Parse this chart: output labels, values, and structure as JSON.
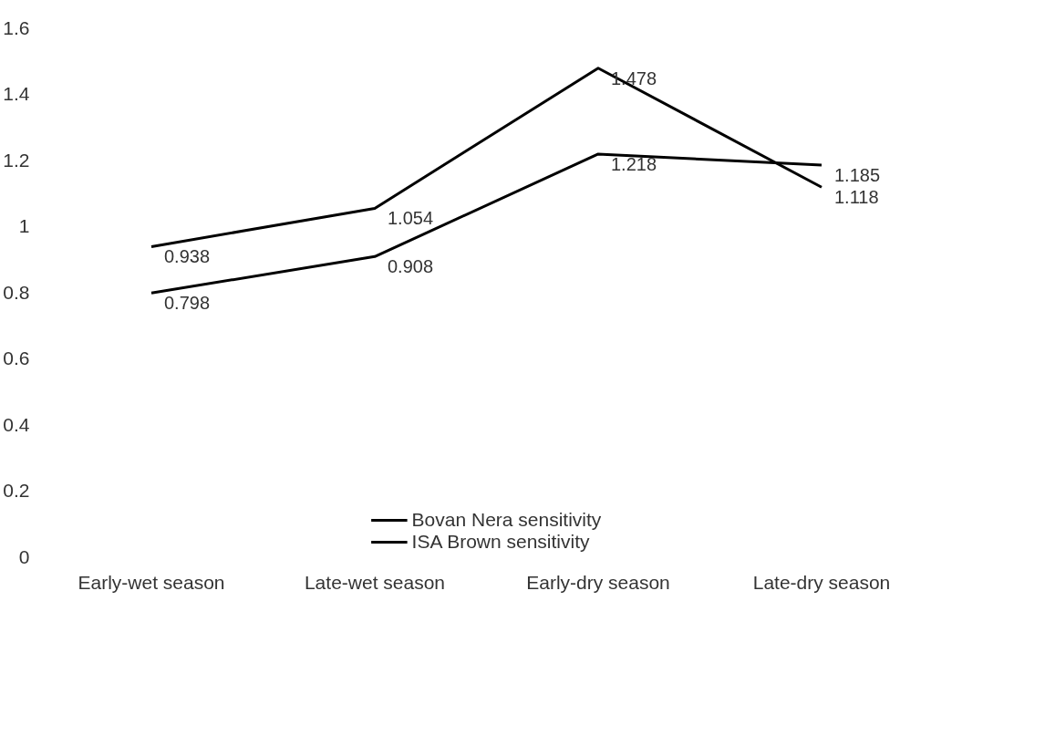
{
  "chart_data": {
    "type": "line",
    "categories": [
      "Early-wet season",
      "Late-wet season",
      "Early-dry season",
      "Late-dry season"
    ],
    "series": [
      {
        "name": "Bovan Nera sensitivity",
        "color": "#000000",
        "values": [
          0.938,
          1.054,
          1.478,
          1.118
        ]
      },
      {
        "name": "ISA Brown sensitivity",
        "color": "#000000",
        "values": [
          0.798,
          0.908,
          1.218,
          1.185
        ]
      }
    ],
    "ylim": [
      0,
      1.6
    ],
    "yticks": [
      0,
      0.2,
      0.4,
      0.6,
      0.8,
      1,
      1.2,
      1.4,
      1.6
    ],
    "grid": false,
    "legend": "bottom",
    "data_labels": true,
    "marker": "none",
    "line_style": "solid"
  }
}
